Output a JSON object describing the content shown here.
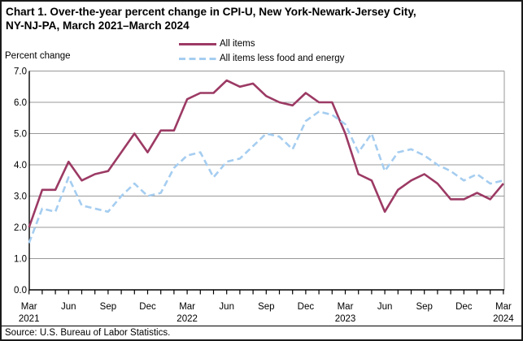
{
  "title_line1": "Chart 1. Over-the-year percent change in CPI-U, New York-Newark-Jersey City,",
  "title_line2": "NY-NJ-PA, March 2021–March 2024",
  "y_axis_title": "Percent change",
  "source": "Source: U.S. Bureau of Labor Statistics.",
  "colors": {
    "all_items": "#9c3a64",
    "core": "#a5cdf0",
    "gridline": "#999999",
    "axis": "#000000",
    "text": "#000000",
    "background": "#ffffff"
  },
  "chart_data": {
    "type": "line",
    "title": "Chart 1. Over-the-year percent change in CPI-U, New York-Newark-Jersey City, NY-NJ-PA, March 2021–March 2024",
    "ylabel": "Percent change",
    "ylim": [
      0.0,
      7.0
    ],
    "grid": "horizontal",
    "legend_position": "top-center",
    "start_month": "Mar 2021",
    "end_month": "Mar 2024",
    "frequency": "monthly",
    "y_ticks": [
      "7.0",
      "6.0",
      "5.0",
      "4.0",
      "3.0",
      "2.0",
      "1.0",
      "0.0"
    ],
    "x_ticks": [
      {
        "m": 0,
        "label": "Mar",
        "year": "2021"
      },
      {
        "m": 3,
        "label": "Jun"
      },
      {
        "m": 6,
        "label": "Sep"
      },
      {
        "m": 9,
        "label": "Dec"
      },
      {
        "m": 12,
        "label": "Mar",
        "year": "2022"
      },
      {
        "m": 15,
        "label": "Jun"
      },
      {
        "m": 18,
        "label": "Sep"
      },
      {
        "m": 21,
        "label": "Dec"
      },
      {
        "m": 24,
        "label": "Mar",
        "year": "2023"
      },
      {
        "m": 27,
        "label": "Jun"
      },
      {
        "m": 30,
        "label": "Sep"
      },
      {
        "m": 33,
        "label": "Dec"
      },
      {
        "m": 36,
        "label": "Mar",
        "year": "2024"
      }
    ],
    "series": [
      {
        "name": "All items",
        "style": "solid",
        "color_key": "all_items",
        "values": [
          2.0,
          3.2,
          3.2,
          4.1,
          3.5,
          3.7,
          3.8,
          4.4,
          5.0,
          4.4,
          5.1,
          5.1,
          6.1,
          6.3,
          6.3,
          6.7,
          6.5,
          6.6,
          6.2,
          6.0,
          5.9,
          6.3,
          6.0,
          6.0,
          5.0,
          3.7,
          3.5,
          2.5,
          3.2,
          3.5,
          3.7,
          3.4,
          2.9,
          2.9,
          3.1,
          2.9,
          3.4
        ]
      },
      {
        "name": "All items less food and energy",
        "style": "dashed",
        "color_key": "core",
        "values": [
          1.5,
          2.6,
          2.5,
          3.6,
          2.7,
          2.6,
          2.5,
          3.0,
          3.4,
          3.0,
          3.1,
          3.9,
          4.3,
          4.4,
          3.6,
          4.1,
          4.2,
          4.6,
          5.0,
          4.9,
          4.5,
          5.4,
          5.7,
          5.6,
          5.3,
          4.4,
          5.0,
          3.8,
          4.4,
          4.5,
          4.3,
          4.0,
          3.8,
          3.5,
          3.7,
          3.4,
          3.5
        ]
      }
    ]
  }
}
